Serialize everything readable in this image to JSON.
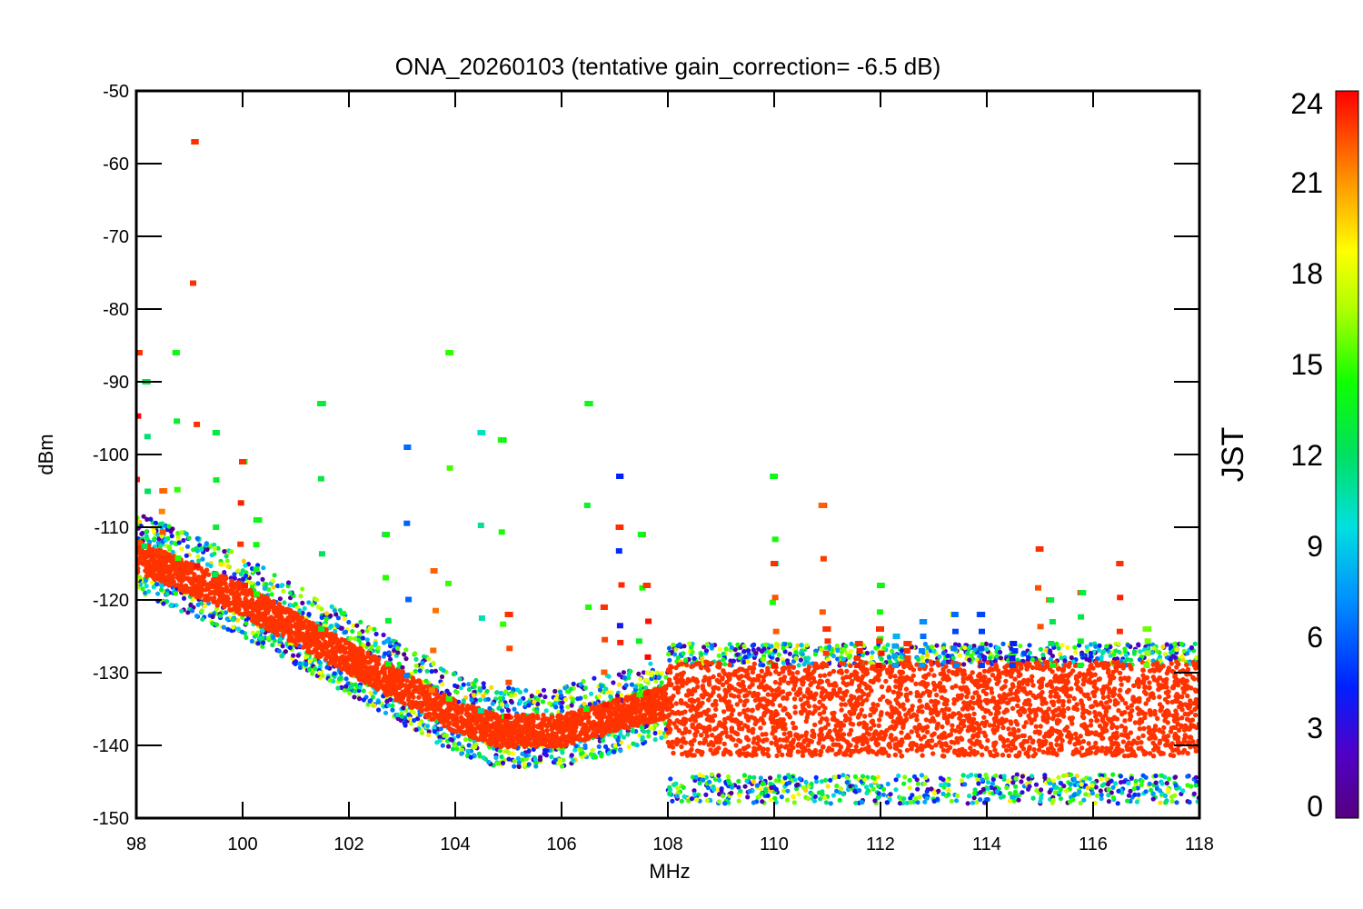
{
  "chart_data": {
    "type": "scatter",
    "title": "ONA_20260103 (tentative gain_correction= -6.5 dB)",
    "xlabel": "MHz",
    "ylabel": "dBm",
    "xlim": [
      98,
      118
    ],
    "ylim": [
      -150,
      -50
    ],
    "x_ticks": [
      98,
      100,
      102,
      104,
      106,
      108,
      110,
      112,
      114,
      116,
      118
    ],
    "x_tick_labels": [
      "98",
      "100",
      "102",
      "104",
      "106",
      "108",
      "110",
      "112",
      "114",
      "116",
      "118"
    ],
    "y_ticks": [
      -50,
      -60,
      -70,
      -80,
      -90,
      -100,
      -110,
      -120,
      -130,
      -140,
      -150
    ],
    "y_tick_labels": [
      "-50",
      "-60",
      "-70",
      "-80",
      "-90",
      "-100",
      "-110",
      "-120",
      "-130",
      "-140",
      "-150"
    ],
    "colorbar": {
      "label": "JST",
      "range": [
        0,
        24
      ],
      "ticks": [
        0,
        3,
        6,
        9,
        12,
        15,
        18,
        21,
        24
      ],
      "tick_labels": [
        "0",
        "3",
        "6",
        "9",
        "12",
        "15",
        "18",
        "21",
        "24"
      ],
      "colormap": "rainbow"
    },
    "noise_floor": [
      {
        "mhz": 98.0,
        "dbm": -114
      },
      {
        "mhz": 99.0,
        "dbm": -117
      },
      {
        "mhz": 100.0,
        "dbm": -120
      },
      {
        "mhz": 101.0,
        "dbm": -124
      },
      {
        "mhz": 102.0,
        "dbm": -128
      },
      {
        "mhz": 103.0,
        "dbm": -132
      },
      {
        "mhz": 104.0,
        "dbm": -136
      },
      {
        "mhz": 104.8,
        "dbm": -138
      },
      {
        "mhz": 106.0,
        "dbm": -138
      },
      {
        "mhz": 107.0,
        "dbm": -136
      },
      {
        "mhz": 108.0,
        "dbm": -134
      },
      {
        "mhz": 108.0,
        "dbm": -135
      },
      {
        "mhz": 118.0,
        "dbm": -135
      }
    ],
    "signals": [
      {
        "mhz": 98.05,
        "peak_dbm": -86,
        "jst": 23
      },
      {
        "mhz": 98.2,
        "peak_dbm": -90,
        "jst": 12
      },
      {
        "mhz": 98.5,
        "peak_dbm": -105,
        "jst": 22
      },
      {
        "mhz": 98.75,
        "peak_dbm": -86,
        "jst": 14
      },
      {
        "mhz": 99.1,
        "peak_dbm": -57,
        "jst": 23
      },
      {
        "mhz": 99.5,
        "peak_dbm": -97,
        "jst": 13
      },
      {
        "mhz": 100.0,
        "peak_dbm": -101,
        "jst": 23
      },
      {
        "mhz": 100.3,
        "peak_dbm": -109,
        "jst": 14
      },
      {
        "mhz": 101.5,
        "peak_dbm": -93,
        "jst": 13
      },
      {
        "mhz": 102.7,
        "peak_dbm": -111,
        "jst": 14
      },
      {
        "mhz": 103.1,
        "peak_dbm": -99,
        "jst": 6
      },
      {
        "mhz": 103.6,
        "peak_dbm": -116,
        "jst": 22
      },
      {
        "mhz": 103.9,
        "peak_dbm": -86,
        "jst": 15
      },
      {
        "mhz": 104.5,
        "peak_dbm": -97,
        "jst": 10
      },
      {
        "mhz": 104.9,
        "peak_dbm": -98,
        "jst": 14
      },
      {
        "mhz": 105.0,
        "peak_dbm": -122,
        "jst": 23
      },
      {
        "mhz": 106.5,
        "peak_dbm": -93,
        "jst": 14
      },
      {
        "mhz": 106.8,
        "peak_dbm": -121,
        "jst": 23
      },
      {
        "mhz": 107.1,
        "peak_dbm": -103,
        "jst": 4
      },
      {
        "mhz": 107.1,
        "peak_dbm": -110,
        "jst": 23
      },
      {
        "mhz": 107.5,
        "peak_dbm": -111,
        "jst": 14
      },
      {
        "mhz": 107.6,
        "peak_dbm": -118,
        "jst": 23
      },
      {
        "mhz": 110.0,
        "peak_dbm": -103,
        "jst": 14
      },
      {
        "mhz": 110.0,
        "peak_dbm": -115,
        "jst": 23
      },
      {
        "mhz": 110.9,
        "peak_dbm": -107,
        "jst": 22
      },
      {
        "mhz": 111.0,
        "peak_dbm": -124,
        "jst": 23
      },
      {
        "mhz": 111.6,
        "peak_dbm": -126,
        "jst": 23
      },
      {
        "mhz": 112.0,
        "peak_dbm": -118,
        "jst": 14
      },
      {
        "mhz": 112.0,
        "peak_dbm": -124,
        "jst": 23
      },
      {
        "mhz": 112.3,
        "peak_dbm": -125,
        "jst": 8
      },
      {
        "mhz": 112.5,
        "peak_dbm": -126,
        "jst": 23
      },
      {
        "mhz": 112.8,
        "peak_dbm": -123,
        "jst": 7
      },
      {
        "mhz": 113.4,
        "peak_dbm": -122,
        "jst": 6
      },
      {
        "mhz": 113.9,
        "peak_dbm": -122,
        "jst": 5
      },
      {
        "mhz": 114.5,
        "peak_dbm": -126,
        "jst": 4
      },
      {
        "mhz": 115.0,
        "peak_dbm": -113,
        "jst": 23
      },
      {
        "mhz": 115.2,
        "peak_dbm": -120,
        "jst": 13
      },
      {
        "mhz": 115.8,
        "peak_dbm": -119,
        "jst": 13
      },
      {
        "mhz": 116.5,
        "peak_dbm": -115,
        "jst": 23
      },
      {
        "mhz": 117.0,
        "peak_dbm": -124,
        "jst": 16
      }
    ]
  },
  "colors": {
    "dominant_marker": "#ff3300",
    "axis": "#000000",
    "background": "#ffffff"
  }
}
